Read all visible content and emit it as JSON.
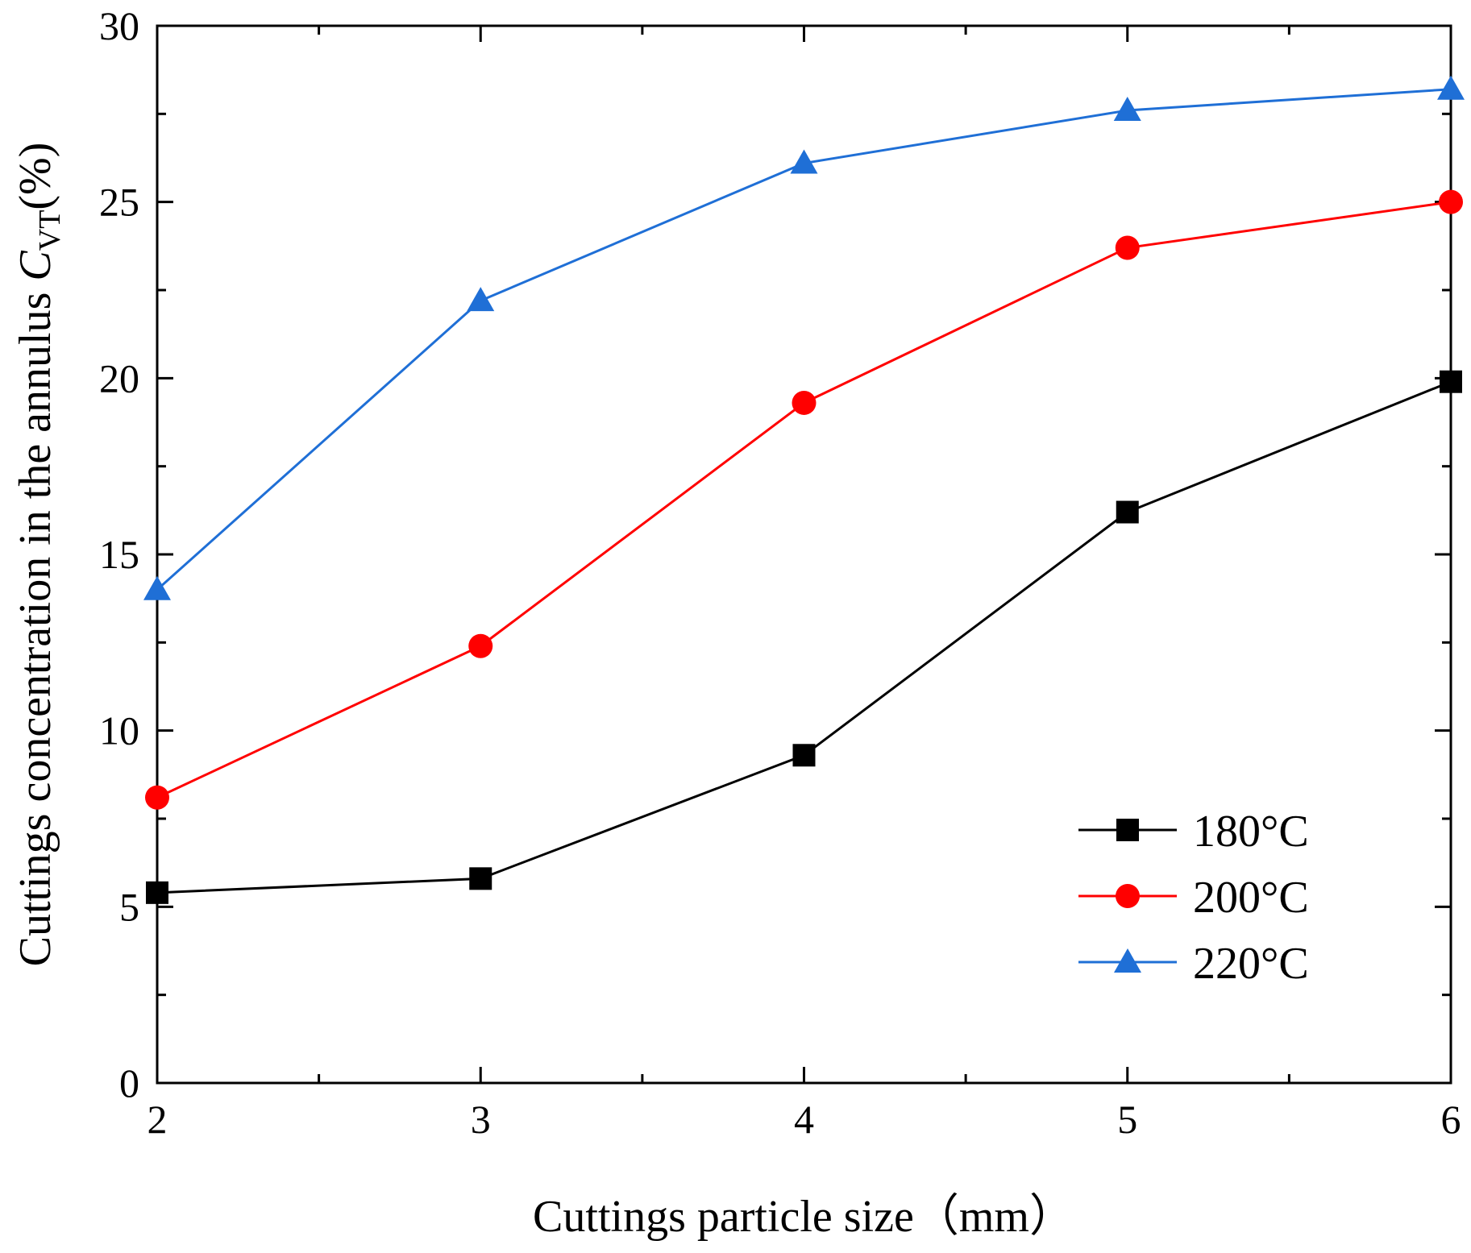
{
  "chart_data": {
    "type": "line",
    "title": "",
    "xlabel": "Cuttings particle size（mm）",
    "ylabel_parts": {
      "prefix": "Cuttings concentration in the annulus ",
      "symbol": "C",
      "subscript": "VT",
      "suffix": "(%)"
    },
    "xlim": [
      2,
      6
    ],
    "ylim": [
      0,
      30
    ],
    "xticks": [
      2,
      3,
      4,
      5,
      6
    ],
    "xtick_labels": [
      "2",
      "3",
      "4",
      "5",
      "6"
    ],
    "yticks": [
      0,
      5,
      10,
      15,
      20,
      25,
      30
    ],
    "ytick_labels": [
      "0",
      "5",
      "10",
      "15",
      "20",
      "25",
      "30"
    ],
    "grid": false,
    "legend_position": "bottom-right",
    "x": [
      2,
      3,
      4,
      5,
      6
    ],
    "series": [
      {
        "name": "180°C",
        "color": "#000000",
        "marker": "square",
        "values": [
          5.4,
          5.8,
          9.3,
          16.2,
          19.9
        ]
      },
      {
        "name": "200°C",
        "color": "#ff0000",
        "marker": "circle",
        "values": [
          8.1,
          12.4,
          19.3,
          23.7,
          25.0
        ]
      },
      {
        "name": "220°C",
        "color": "#1f6fd6",
        "marker": "triangle",
        "values": [
          14.0,
          22.2,
          26.1,
          27.6,
          28.2
        ]
      }
    ]
  }
}
